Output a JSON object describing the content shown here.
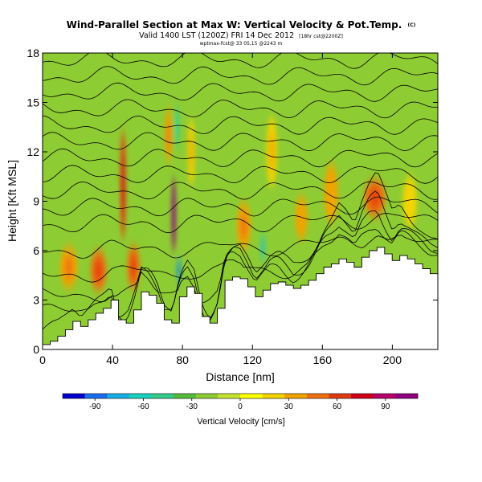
{
  "chart_data": {
    "type": "heatmap",
    "title": "Wind-Parallel Section at Max W: Vertical Velocity & Pot.Temp.",
    "title_mark": "(C)",
    "subtitle": "Valid 1400 LST (1200Z) FRI 14 Dec 2012",
    "subtitle_tail": "[18hr cst@2200Z]",
    "subtitle2": "wptmax-fcst@ 33 05,15 @2243 m",
    "xlabel": "Distance [nm]",
    "ylabel": "Height [Kft MSL]",
    "xlim": [
      0,
      226
    ],
    "ylim": [
      0,
      18
    ],
    "x_ticks": [
      0,
      40,
      80,
      120,
      160,
      200
    ],
    "y_ticks": [
      0,
      3,
      6,
      9,
      12,
      15,
      18
    ],
    "colorbar": {
      "label": "Vertical Velocity [cm/s]",
      "ticks": [
        -90,
        -60,
        -30,
        0,
        30,
        60,
        90
      ],
      "range": [
        -110,
        110
      ],
      "colors": [
        "#0000cc",
        "#1a6cf0",
        "#16aee6",
        "#18d2bf",
        "#33cc8c",
        "#55bb3a",
        "#8ecc33",
        "#c6e32e",
        "#ffff00",
        "#f4d400",
        "#f0a400",
        "#f07010",
        "#e03a10",
        "#d00018",
        "#b8006a",
        "#900080"
      ]
    },
    "terrain_heights_kft": [
      0.3,
      0.5,
      0.8,
      1.2,
      1.7,
      1.4,
      1.8,
      2.2,
      2.5,
      3.0,
      1.8,
      1.6,
      2.4,
      3.5,
      3.3,
      2.8,
      1.8,
      1.6,
      3.2,
      3.8,
      3.4,
      2.0,
      1.6,
      2.5,
      4.2,
      4.4,
      4.3,
      3.8,
      3.2,
      3.6,
      4.0,
      4.1,
      3.9,
      3.7,
      3.9,
      4.2,
      4.6,
      5.0,
      5.2,
      5.5,
      5.3,
      5.0,
      5.6,
      6.0,
      6.2,
      5.8,
      5.4,
      5.7,
      5.5,
      5.2,
      4.9,
      4.6,
      4.5
    ],
    "theta_isentrope_heights_kft": [
      1.2,
      2.2,
      3.2,
      4.5,
      6.0,
      7.6,
      8.6,
      9.6,
      10.6,
      11.6,
      12.6,
      13.6,
      14.6,
      15.6,
      16.6,
      17.6
    ],
    "w_cells": [
      {
        "x": 15,
        "y": 5.0,
        "w": 10,
        "h": 2.5,
        "v": 35
      },
      {
        "x": 32,
        "y": 4.8,
        "w": 9,
        "h": 2.4,
        "v": 45
      },
      {
        "x": 38,
        "y": 9.0,
        "w": 7,
        "h": 2.2,
        "v": -22
      },
      {
        "x": 46,
        "y": 10.0,
        "w": 3,
        "h": 6.5,
        "v": 60
      },
      {
        "x": 52,
        "y": 5.0,
        "w": 7,
        "h": 2.6,
        "v": 45
      },
      {
        "x": 62,
        "y": 9.0,
        "w": 6,
        "h": 3.0,
        "v": -20
      },
      {
        "x": 72,
        "y": 13.0,
        "w": 4,
        "h": 3.2,
        "v": 35
      },
      {
        "x": 75,
        "y": 8.2,
        "w": 2.2,
        "h": 4.5,
        "v": 105
      },
      {
        "x": 77,
        "y": 13.5,
        "w": 2.0,
        "h": 2.6,
        "v": -55
      },
      {
        "x": 78,
        "y": 4.8,
        "w": 2.0,
        "h": 1.5,
        "v": -80
      },
      {
        "x": 85,
        "y": 12.0,
        "w": 4,
        "h": 4.0,
        "v": 25
      },
      {
        "x": 97,
        "y": 11.0,
        "w": 5,
        "h": 3.0,
        "v": -20
      },
      {
        "x": 115,
        "y": 7.5,
        "w": 8,
        "h": 2.8,
        "v": 38
      },
      {
        "x": 126,
        "y": 6.2,
        "w": 2.0,
        "h": 1.6,
        "v": -65
      },
      {
        "x": 131,
        "y": 12.0,
        "w": 6,
        "h": 4.2,
        "v": 25
      },
      {
        "x": 148,
        "y": 8.0,
        "w": 7,
        "h": 2.6,
        "v": 30
      },
      {
        "x": 165,
        "y": 9.5,
        "w": 8,
        "h": 3.5,
        "v": 28
      },
      {
        "x": 190,
        "y": 9.2,
        "w": 12,
        "h": 2.2,
        "v": 45
      },
      {
        "x": 210,
        "y": 9.0,
        "w": 8,
        "h": 3.0,
        "v": 20
      }
    ]
  }
}
